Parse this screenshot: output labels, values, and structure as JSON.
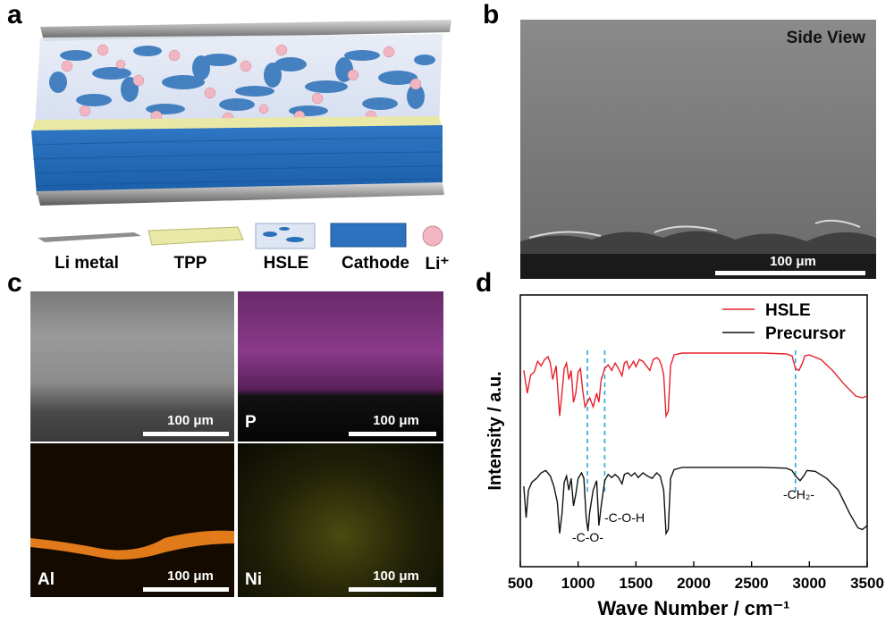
{
  "panels": {
    "a": {
      "letter": "a",
      "legend": [
        "Li metal",
        "TPP",
        "HSLE",
        "Cathode",
        "Li⁺"
      ]
    },
    "b": {
      "letter": "b",
      "title": "Side View",
      "scale": "100 μm"
    },
    "c": {
      "letter": "c",
      "tiles": [
        {
          "label": "",
          "scale": "100 μm"
        },
        {
          "label": "P",
          "scale": "100 μm"
        },
        {
          "label": "Al",
          "scale": "100 μm"
        },
        {
          "label": "Ni",
          "scale": "100 μm"
        }
      ]
    },
    "d": {
      "letter": "d",
      "annotations": [
        "-C-O-",
        "-C-O-H",
        "-CH₂-"
      ],
      "marker_positions": [
        1080,
        1230,
        2880
      ]
    }
  },
  "chart_data": {
    "type": "line",
    "xlabel": "Wave Number / cm⁻¹",
    "ylabel": "Intensity / a.u.",
    "xlim": [
      500,
      3500
    ],
    "xticks": [
      500,
      1000,
      1500,
      2000,
      2500,
      3000,
      3500
    ],
    "legend_position": "top-right",
    "series": [
      {
        "name": "HSLE",
        "color": "#e8202a",
        "points": [
          [
            530,
            0.8
          ],
          [
            560,
            0.55
          ],
          [
            590,
            0.75
          ],
          [
            620,
            0.78
          ],
          [
            650,
            0.9
          ],
          [
            680,
            0.85
          ],
          [
            710,
            0.92
          ],
          [
            740,
            0.95
          ],
          [
            760,
            0.88
          ],
          [
            780,
            0.7
          ],
          [
            810,
            0.85
          ],
          [
            840,
            0.3
          ],
          [
            860,
            0.55
          ],
          [
            880,
            0.82
          ],
          [
            900,
            0.88
          ],
          [
            920,
            0.7
          ],
          [
            940,
            0.8
          ],
          [
            960,
            0.45
          ],
          [
            980,
            0.55
          ],
          [
            1000,
            0.78
          ],
          [
            1020,
            0.82
          ],
          [
            1040,
            0.58
          ],
          [
            1060,
            0.4
          ],
          [
            1080,
            0.45
          ],
          [
            1100,
            0.5
          ],
          [
            1130,
            0.4
          ],
          [
            1160,
            0.55
          ],
          [
            1180,
            0.45
          ],
          [
            1200,
            0.7
          ],
          [
            1230,
            0.82
          ],
          [
            1260,
            0.86
          ],
          [
            1290,
            0.8
          ],
          [
            1320,
            0.88
          ],
          [
            1350,
            0.82
          ],
          [
            1380,
            0.74
          ],
          [
            1400,
            0.88
          ],
          [
            1420,
            0.9
          ],
          [
            1440,
            0.82
          ],
          [
            1460,
            0.86
          ],
          [
            1480,
            0.9
          ],
          [
            1500,
            0.84
          ],
          [
            1530,
            0.92
          ],
          [
            1560,
            0.9
          ],
          [
            1590,
            0.85
          ],
          [
            1620,
            0.8
          ],
          [
            1650,
            0.92
          ],
          [
            1680,
            0.94
          ],
          [
            1700,
            0.92
          ],
          [
            1720,
            0.86
          ],
          [
            1740,
            0.75
          ],
          [
            1760,
            0.3
          ],
          [
            1780,
            0.35
          ],
          [
            1800,
            0.85
          ],
          [
            1830,
            0.97
          ],
          [
            1900,
            0.99
          ],
          [
            2000,
            0.99
          ],
          [
            2200,
            0.99
          ],
          [
            2400,
            0.99
          ],
          [
            2600,
            0.99
          ],
          [
            2800,
            0.98
          ],
          [
            2850,
            0.96
          ],
          [
            2880,
            0.82
          ],
          [
            2910,
            0.8
          ],
          [
            2940,
            0.88
          ],
          [
            2960,
            0.96
          ],
          [
            3000,
            0.97
          ],
          [
            3100,
            0.92
          ],
          [
            3200,
            0.8
          ],
          [
            3300,
            0.65
          ],
          [
            3400,
            0.52
          ],
          [
            3460,
            0.5
          ],
          [
            3500,
            0.52
          ]
        ]
      },
      {
        "name": "Precursor",
        "color": "#111111",
        "points": [
          [
            530,
            0.75
          ],
          [
            550,
            0.35
          ],
          [
            570,
            0.7
          ],
          [
            600,
            0.8
          ],
          [
            640,
            0.85
          ],
          [
            680,
            0.92
          ],
          [
            720,
            0.95
          ],
          [
            760,
            0.88
          ],
          [
            790,
            0.75
          ],
          [
            820,
            0.55
          ],
          [
            840,
            0.15
          ],
          [
            860,
            0.4
          ],
          [
            880,
            0.8
          ],
          [
            900,
            0.88
          ],
          [
            920,
            0.7
          ],
          [
            940,
            0.85
          ],
          [
            960,
            0.5
          ],
          [
            980,
            0.65
          ],
          [
            1000,
            0.85
          ],
          [
            1030,
            0.92
          ],
          [
            1050,
            0.85
          ],
          [
            1070,
            0.35
          ],
          [
            1085,
            0.18
          ],
          [
            1100,
            0.42
          ],
          [
            1130,
            0.7
          ],
          [
            1160,
            0.82
          ],
          [
            1180,
            0.25
          ],
          [
            1200,
            0.5
          ],
          [
            1230,
            0.82
          ],
          [
            1260,
            0.9
          ],
          [
            1290,
            0.86
          ],
          [
            1320,
            0.9
          ],
          [
            1350,
            0.86
          ],
          [
            1380,
            0.78
          ],
          [
            1400,
            0.9
          ],
          [
            1430,
            0.92
          ],
          [
            1460,
            0.88
          ],
          [
            1490,
            0.92
          ],
          [
            1520,
            0.86
          ],
          [
            1560,
            0.92
          ],
          [
            1600,
            0.88
          ],
          [
            1640,
            0.85
          ],
          [
            1680,
            0.92
          ],
          [
            1710,
            0.88
          ],
          [
            1740,
            0.7
          ],
          [
            1760,
            0.15
          ],
          [
            1780,
            0.2
          ],
          [
            1800,
            0.85
          ],
          [
            1830,
            0.96
          ],
          [
            1900,
            0.99
          ],
          [
            2000,
            0.99
          ],
          [
            2200,
            0.99
          ],
          [
            2400,
            0.99
          ],
          [
            2600,
            0.99
          ],
          [
            2800,
            0.98
          ],
          [
            2850,
            0.95
          ],
          [
            2880,
            0.88
          ],
          [
            2920,
            0.82
          ],
          [
            2950,
            0.88
          ],
          [
            2980,
            0.95
          ],
          [
            3050,
            0.94
          ],
          [
            3150,
            0.85
          ],
          [
            3250,
            0.7
          ],
          [
            3350,
            0.4
          ],
          [
            3420,
            0.22
          ],
          [
            3460,
            0.2
          ],
          [
            3500,
            0.25
          ]
        ]
      }
    ]
  }
}
